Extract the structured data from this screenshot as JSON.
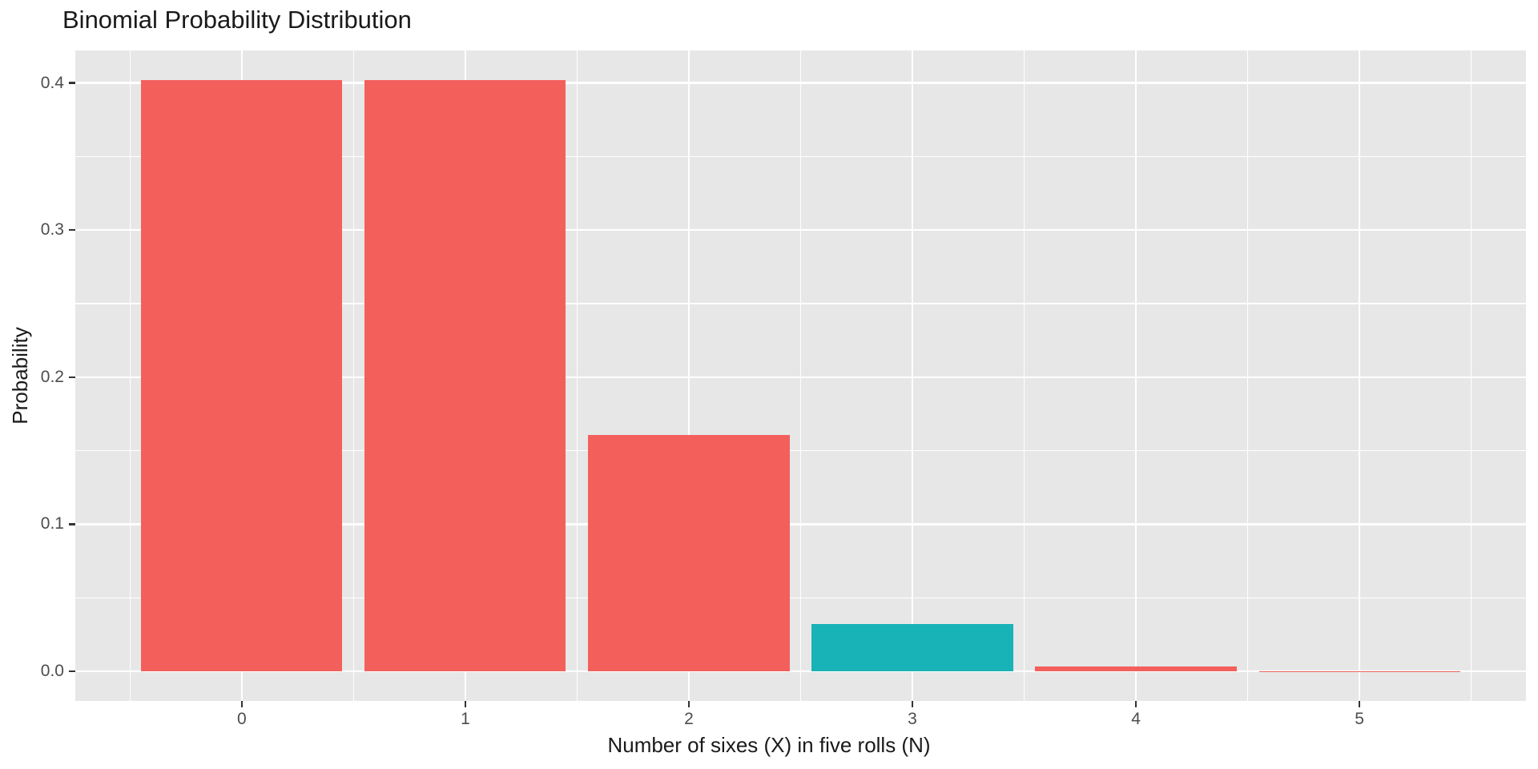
{
  "chart_data": {
    "type": "bar",
    "title": "Binomial Probability Distribution",
    "xlabel": "Number of sixes (X) in five rolls (N)",
    "ylabel": "Probability",
    "categories": [
      0,
      1,
      2,
      3,
      4,
      5
    ],
    "values": [
      0.4019,
      0.4019,
      0.1608,
      0.0322,
      0.0032,
      0.00013
    ],
    "bar_colors": [
      "#F3605C",
      "#F3605C",
      "#F3605C",
      "#18B3B6",
      "#F3605C",
      "#F3605C"
    ],
    "highlighted_category": 3,
    "bar_width": 0.9,
    "xlim": [
      -0.745,
      5.745
    ],
    "ylim": [
      -0.0201,
      0.4221
    ],
    "x_tick_values": [
      0,
      1,
      2,
      3,
      4,
      5
    ],
    "x_tick_labels": [
      "0",
      "1",
      "2",
      "3",
      "4",
      "5"
    ],
    "y_tick_values": [
      0.0,
      0.1,
      0.2,
      0.3,
      0.4
    ],
    "y_tick_labels": [
      "0.0",
      "0.1",
      "0.2",
      "0.3",
      "0.4"
    ],
    "legend": "none",
    "grid": "major and minor, white lines on gray panel",
    "colors": {
      "panel_bg": "#E7E7E7",
      "grid": "#FFFFFF",
      "tick_mark": "#333333",
      "tick_label": "#4D4D4D",
      "text": "#1A1A1A",
      "bar_default": "#F3605C",
      "bar_highlight": "#18B3B6"
    }
  }
}
